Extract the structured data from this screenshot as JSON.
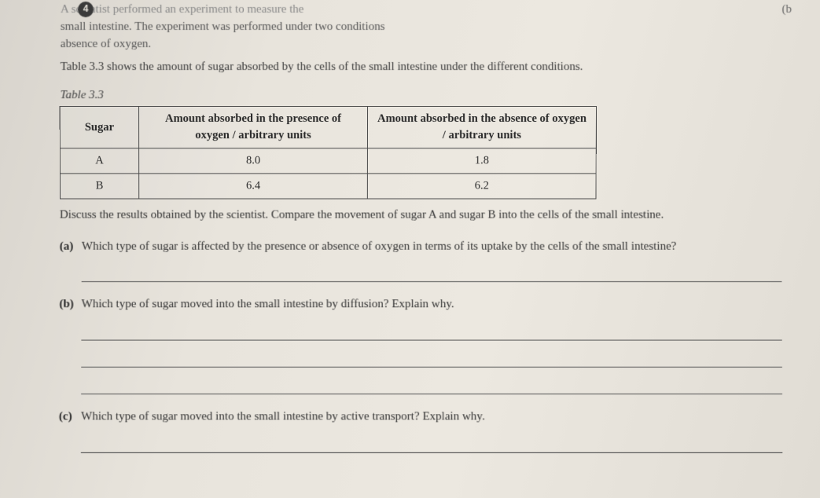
{
  "question_number": "4",
  "edge_mark": "(b",
  "intro": {
    "line1_faded": "A scientist performed an experiment to measure the",
    "line2": "small intestine. The experiment was performed under two conditions",
    "line3": "absence of oxygen."
  },
  "caption_text": "Table 3.3 shows the amount of sugar absorbed by the cells of the small intestine under the different conditions.",
  "table": {
    "label": "Table 3.3",
    "headers": {
      "col1": "Sugar",
      "col2": "Amount absorbed in the presence of oxygen / arbitrary units",
      "col3": "Amount absorbed in the absence of oxygen / arbitrary units"
    },
    "rows": [
      {
        "sugar": "A",
        "presence": "8.0",
        "absence": "1.8"
      },
      {
        "sugar": "B",
        "presence": "6.4",
        "absence": "6.2"
      }
    ],
    "border_color": "#4a4a4a",
    "font_size": 14.5
  },
  "discuss": "Discuss the results obtained by the scientist. Compare the movement of sugar A and sugar B into the cells of the small intestine.",
  "subquestions": {
    "a": {
      "label": "(a)",
      "text": "Which type of sugar is affected by the presence or absence of oxygen in terms of its uptake by the cells of the small intestine?",
      "answer_lines": 1
    },
    "b": {
      "label": "(b)",
      "text": "Which type of sugar moved into the small intestine by diffusion? Explain why.",
      "answer_lines": 3
    },
    "c": {
      "label": "(c)",
      "text": "Which type of sugar moved into the small intestine by active transport? Explain why.",
      "answer_lines": 1
    }
  },
  "colors": {
    "text": "#2a2a2a",
    "faded_text": "#888888",
    "line": "#555555",
    "background": "#e8e4dc"
  }
}
